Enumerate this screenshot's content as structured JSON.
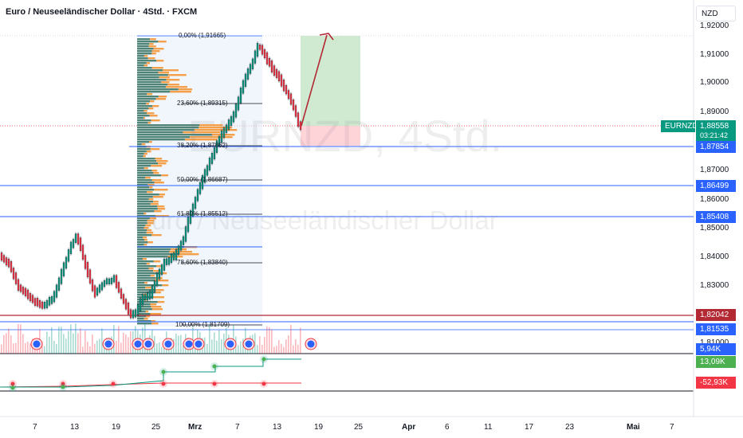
{
  "header": {
    "title": "Euro / Neuseeländischer Dollar · 4Std. · FXCM",
    "currency_button": "NZD"
  },
  "watermark": {
    "symbol": "EURNZD, 4Std.",
    "name": "Euro / Neuseeländischer Dollar"
  },
  "price_axis": {
    "labels": [
      "1,92000",
      "1,91000",
      "1,90000",
      "1,89000",
      "1,87000",
      "1,86000",
      "1,85000",
      "1,84000",
      "1,83000",
      "1,81000"
    ]
  },
  "tags": {
    "symbol": "EURNZD",
    "current_price": "1,88558",
    "countdown": "03:21:42",
    "level_1": "1,87854",
    "level_2": "1,86499",
    "level_3": "1,85408",
    "level_4": "1,82042",
    "level_5": "1,81535",
    "volume": "5,94K",
    "indicator_pos": "13,09K",
    "indicator_neg": "-52,93K"
  },
  "fib_levels": [
    {
      "label": "0,00% (1,91665)"
    },
    {
      "label": "23,60% (1,89315)"
    },
    {
      "label": "38,20% (1,87862)"
    },
    {
      "label": "50,00% (1,86687)"
    },
    {
      "label": "61,80% (1,85512)"
    },
    {
      "label": "78,60% (1,83840)"
    },
    {
      "label": "100,00% (1,81709)"
    }
  ],
  "time_axis": {
    "labels": [
      "7",
      "13",
      "19",
      "25",
      "Mrz",
      "7",
      "13",
      "19",
      "25",
      "Apr",
      "6",
      "11",
      "17",
      "23",
      "Mai",
      "7"
    ]
  },
  "colors": {
    "up": "#089981",
    "down": "#f23645",
    "blue_tag": "#2962ff",
    "red_tag": "#b22833",
    "green_tag": "#089981",
    "profit_zone": "#c8e6c9",
    "loss_zone": "#ffcdd2"
  }
}
